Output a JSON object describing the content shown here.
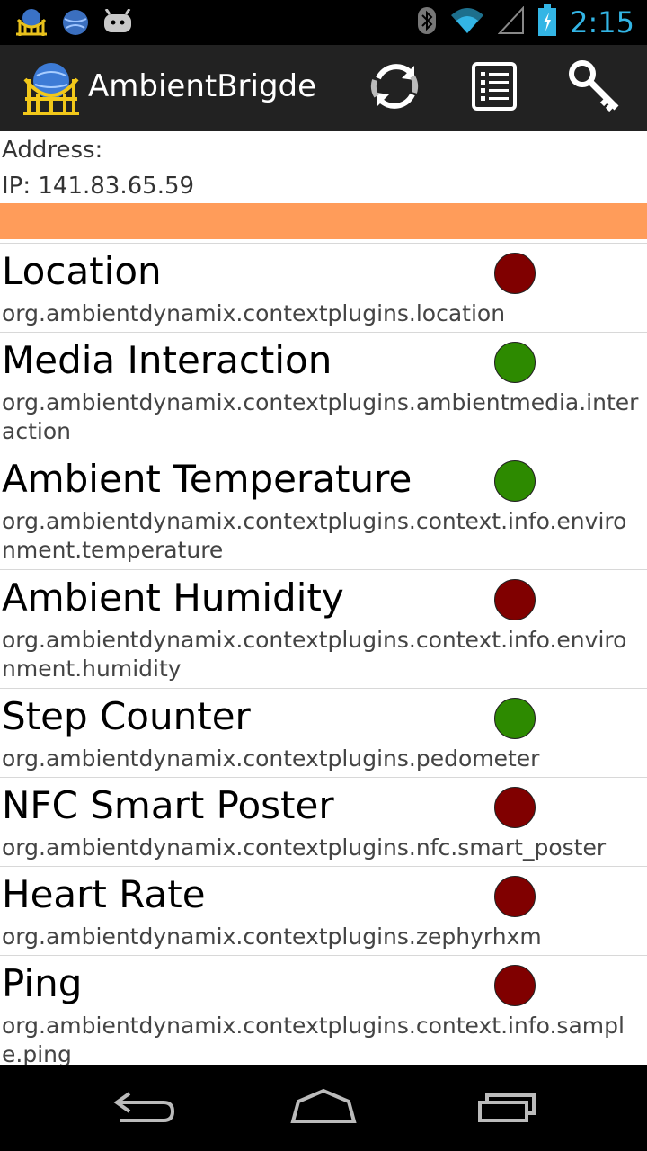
{
  "status_bar": {
    "time": "2:15",
    "left_icons": [
      "bridge-notification-icon",
      "globe-notification-icon",
      "android-notification-icon"
    ],
    "right_icons": [
      "bluetooth-icon",
      "wifi-icon",
      "signal-icon",
      "battery-icon"
    ]
  },
  "action_bar": {
    "title": "AmbientBrigde",
    "actions": [
      "refresh-icon",
      "list-icon",
      "settings-key-icon"
    ]
  },
  "address": {
    "label": "Address:",
    "ip": "IP: 141.83.65.59"
  },
  "colors": {
    "orange_bar": "#ff9c5a",
    "status_active": "#2d8a00",
    "status_inactive": "#800000",
    "clock": "#33b5e5"
  },
  "plugins": [
    {
      "name": "Location",
      "package": "org.ambientdynamix.contextplugins.location",
      "status": "inactive"
    },
    {
      "name": "Media Interaction",
      "package": "org.ambientdynamix.contextplugins.ambientmedia.interaction",
      "status": "active"
    },
    {
      "name": "Ambient Temperature",
      "package": "org.ambientdynamix.contextplugins.context.info.environment.temperature",
      "status": "active"
    },
    {
      "name": "Ambient Humidity",
      "package": "org.ambientdynamix.contextplugins.context.info.environment.humidity",
      "status": "inactive"
    },
    {
      "name": "Step Counter",
      "package": "org.ambientdynamix.contextplugins.pedometer",
      "status": "active"
    },
    {
      "name": "NFC Smart Poster",
      "package": "org.ambientdynamix.contextplugins.nfc.smart_poster",
      "status": "inactive"
    },
    {
      "name": "Heart Rate",
      "package": "org.ambientdynamix.contextplugins.zephyrhxm",
      "status": "inactive"
    },
    {
      "name": "Ping",
      "package": "org.ambientdynamix.contextplugins.context.info.sample.ping",
      "status": "inactive"
    }
  ],
  "nav_bar": {
    "buttons": [
      "back-icon",
      "home-icon",
      "recent-apps-icon"
    ]
  }
}
